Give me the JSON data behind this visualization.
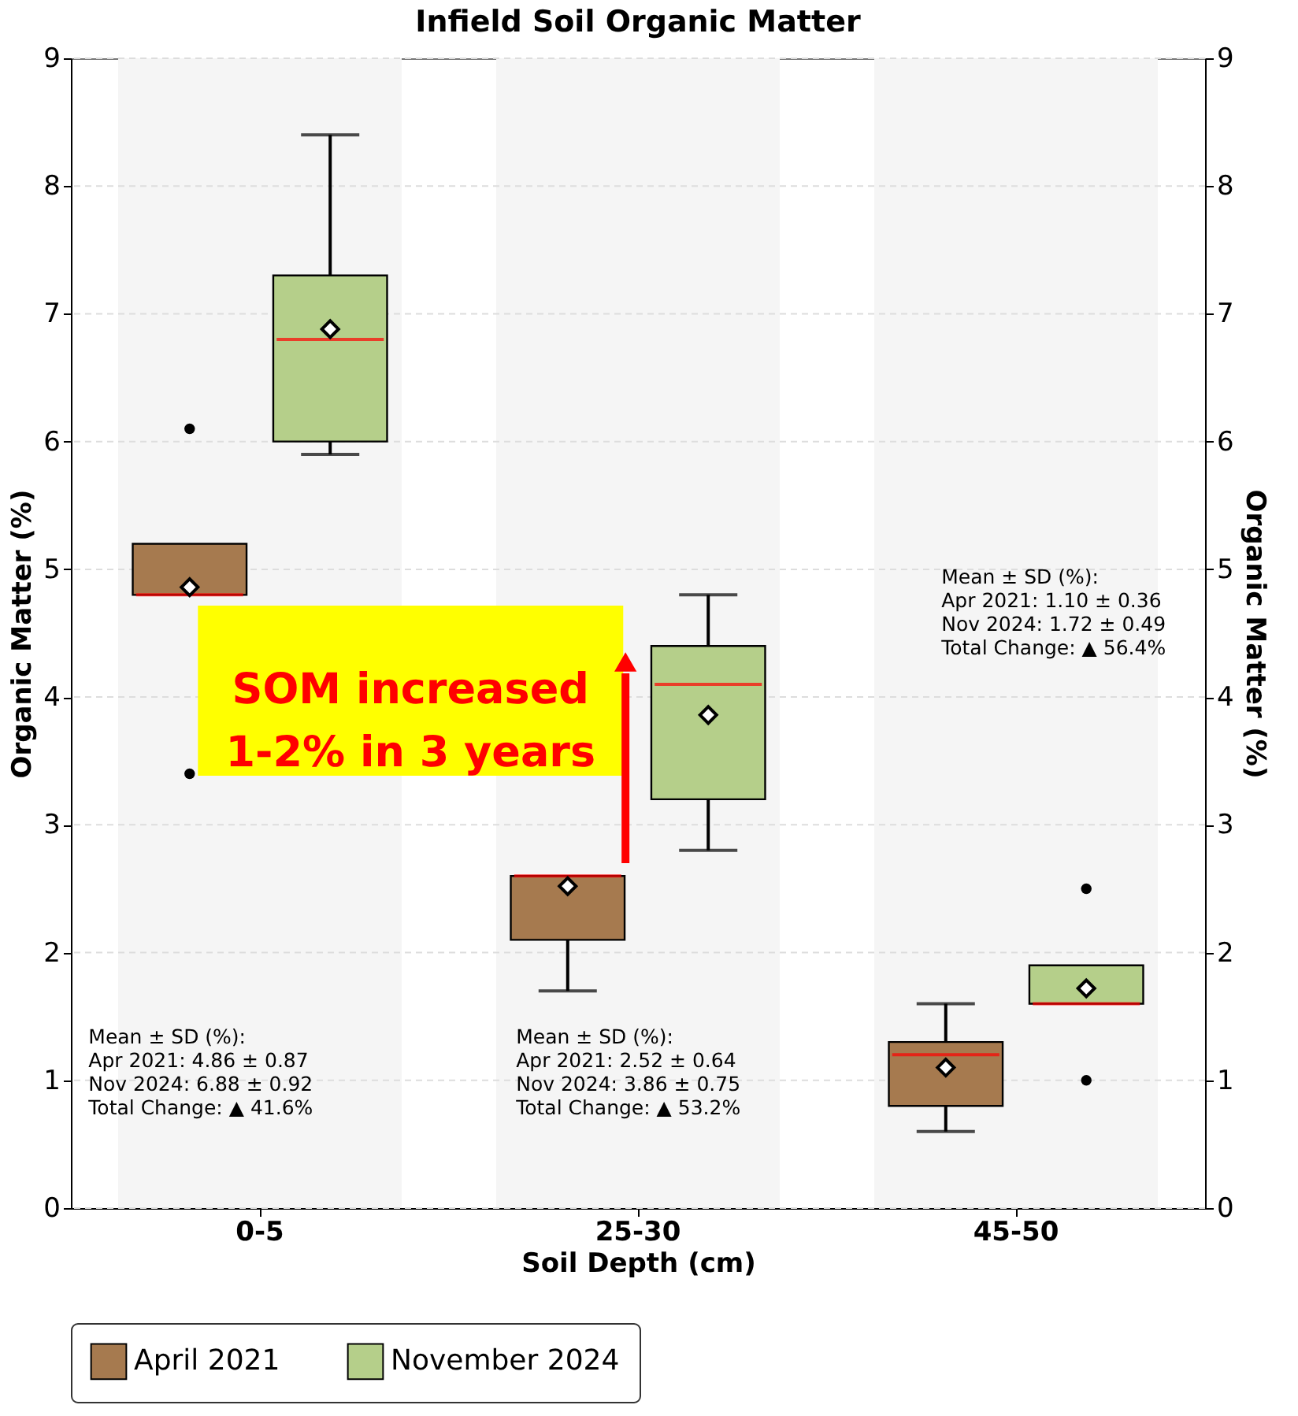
{
  "chart_data": {
    "type": "box",
    "title": "Infield Soil Organic Matter",
    "xlabel": "Soil Depth (cm)",
    "ylabel": "Organic Matter (%)",
    "y2label": "Organic Matter (%)",
    "categories": [
      "0-5",
      "25-30",
      "45-50"
    ],
    "series": [
      {
        "name": "April 2021",
        "color": "#a67a4f",
        "boxes": [
          {
            "low": 4.8,
            "q1": 4.8,
            "median": 4.8,
            "q3": 5.2,
            "high": 5.2,
            "mean": 4.86,
            "outliers": [
              6.1,
              3.4
            ]
          },
          {
            "low": 1.7,
            "q1": 2.1,
            "median": 2.6,
            "q3": 2.6,
            "high": 2.6,
            "mean": 2.52
          },
          {
            "low": 0.6,
            "q1": 0.8,
            "median": 1.2,
            "q3": 1.3,
            "high": 1.6,
            "mean": 1.1
          }
        ]
      },
      {
        "name": "November 2024",
        "color": "#b5cf8a",
        "boxes": [
          {
            "low": 5.9,
            "q1": 6.0,
            "median": 6.8,
            "q3": 7.3,
            "high": 8.4,
            "mean": 6.88
          },
          {
            "low": 2.8,
            "q1": 3.2,
            "median": 4.1,
            "q3": 4.4,
            "high": 4.8,
            "mean": 3.86
          },
          {
            "low": 1.6,
            "q1": 1.6,
            "median": 1.6,
            "q3": 1.9,
            "high": 1.9,
            "mean": 1.72,
            "outliers": [
              2.5,
              1.0
            ]
          }
        ]
      }
    ],
    "ylim": [
      0,
      9
    ],
    "yticks": [
      0,
      1,
      2,
      3,
      4,
      5,
      6,
      7,
      8,
      9
    ],
    "y2lim": [
      0,
      9
    ],
    "y2ticks": [
      0,
      1,
      2,
      3,
      4,
      5,
      6,
      7,
      8,
      9
    ],
    "bands": [
      {
        "axis": "x",
        "from": "0-5",
        "to": "0-5",
        "color": "#f5f5f5"
      },
      {
        "axis": "x",
        "from": "25-30",
        "to": "25-30",
        "color": "#f5f5f5"
      },
      {
        "axis": "x",
        "from": "45-50",
        "to": "45-50",
        "color": "#f5f5f5"
      }
    ],
    "annotations": [
      "Mean ± SD (%):\nApr 2021: 4.86 ± 0.87\nNov 2024: 6.88 ± 0.92\n\nTotal Change: ▲ 41.6%",
      "Mean ± SD (%):\nApr 2021: 2.52 ± 0.64\nNov 2024: 3.86 ± 0.75\n\nTotal Change: ▲ 53.2%",
      "Mean ± SD (%):\nApr 2021: 1.10 ± 0.36\nNov 2024: 1.72 ± 0.49\n\nTotal Change: ▲ 56.4%",
      "SOM increased\n1-2% in 3 years"
    ],
    "grid": "y",
    "legend": "bottom",
    "marker": "diamond"
  }
}
